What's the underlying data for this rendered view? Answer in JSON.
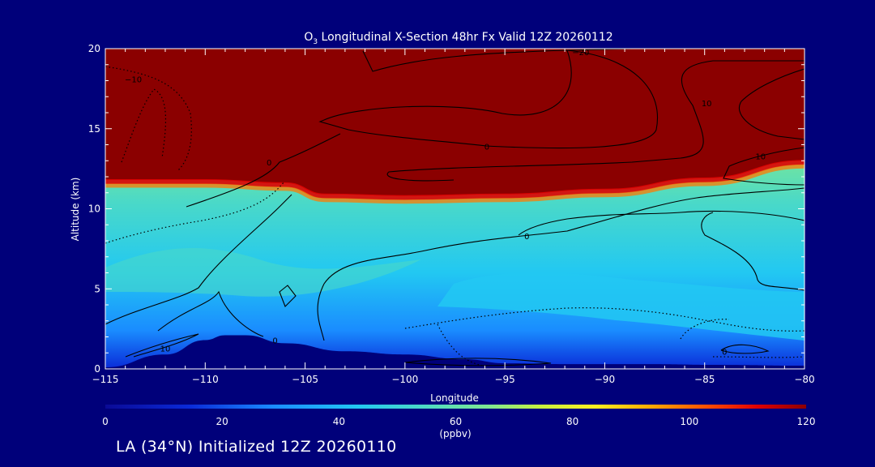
{
  "colors": {
    "background": "#00007a",
    "text": "#ffffff",
    "contour": "#000000",
    "colormap": [
      "#0a0a96",
      "#0a2ad8",
      "#1a8cff",
      "#22c8f2",
      "#4ad9c8",
      "#80e890",
      "#c6f040",
      "#fff020",
      "#ffa800",
      "#ff4c00",
      "#e00000",
      "#8b0000"
    ]
  },
  "chart_data": {
    "type": "heatmap",
    "title_prefix": "O",
    "title_subscript": "3",
    "title_rest": " Longitudinal X-Section 48hr  Fx Valid 12Z 20260112",
    "xlabel": "Longitude",
    "ylabel": "Altitude (km)",
    "xlim": [
      -115,
      -80
    ],
    "ylim": [
      0,
      20
    ],
    "xticks": [
      -115,
      -110,
      -105,
      -100,
      -95,
      -90,
      -85,
      -80
    ],
    "xtick_labels": [
      "−115",
      "−110",
      "−105",
      "−100",
      "−95",
      "−90",
      "−85",
      "−80"
    ],
    "yticks": [
      0,
      5,
      10,
      15,
      20
    ],
    "ytick_labels": [
      "0",
      "5",
      "10",
      "15",
      "20"
    ],
    "colorbar": {
      "range": [
        0,
        120
      ],
      "ticks": [
        0,
        20,
        40,
        60,
        80,
        100,
        120
      ],
      "tick_labels": [
        "0",
        "20",
        "40",
        "60",
        "80",
        "100",
        "120"
      ],
      "units": "(ppbv)"
    },
    "tropopause_km": [
      [
        -115,
        11.8
      ],
      [
        -110,
        11.8
      ],
      [
        -106,
        11.6
      ],
      [
        -104,
        10.9
      ],
      [
        -100,
        10.8
      ],
      [
        -95,
        10.9
      ],
      [
        -90,
        11.2
      ],
      [
        -85,
        11.9
      ],
      [
        -80,
        13.0
      ]
    ],
    "terrain_km": [
      [
        -115,
        0.1
      ],
      [
        -112,
        0.9
      ],
      [
        -110,
        1.8
      ],
      [
        -109,
        2.1
      ],
      [
        -108,
        2.1
      ],
      [
        -106,
        1.6
      ],
      [
        -103,
        1.1
      ],
      [
        -100,
        0.9
      ],
      [
        -97,
        0.6
      ],
      [
        -95,
        0.35
      ],
      [
        -92,
        0.3
      ],
      [
        -88,
        0.3
      ],
      [
        -84,
        0.25
      ],
      [
        -80,
        0.2
      ]
    ],
    "contour_labels": [
      {
        "text": "−10",
        "x": -113.6,
        "y": 18.1
      },
      {
        "text": "0",
        "x": -106.8,
        "y": 12.9
      },
      {
        "text": "0",
        "x": -95.9,
        "y": 13.9
      },
      {
        "text": "−20",
        "x": -91.2,
        "y": 19.8
      },
      {
        "text": "10",
        "x": -84.9,
        "y": 16.6
      },
      {
        "text": "10",
        "x": -82.2,
        "y": 13.3
      },
      {
        "text": "0",
        "x": -93.9,
        "y": 8.3
      },
      {
        "text": "0",
        "x": -106.5,
        "y": 1.8
      },
      {
        "text": "0",
        "x": -84.0,
        "y": 1.1
      },
      {
        "text": "10",
        "x": -112.0,
        "y": 1.3
      }
    ]
  },
  "footer": "LA (34°N) Initialized 12Z 20260110"
}
